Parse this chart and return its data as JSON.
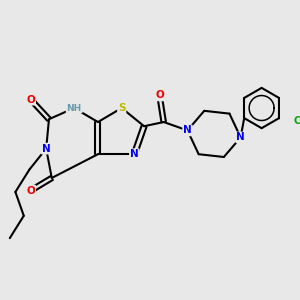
{
  "background_color": "#e8e8e8",
  "bond_color": "#000000",
  "atom_colors": {
    "N": "#0000ee",
    "NH": "#6699aa",
    "O": "#ee0000",
    "S": "#bbbb00",
    "Cl": "#00aa00",
    "C": "#000000"
  }
}
